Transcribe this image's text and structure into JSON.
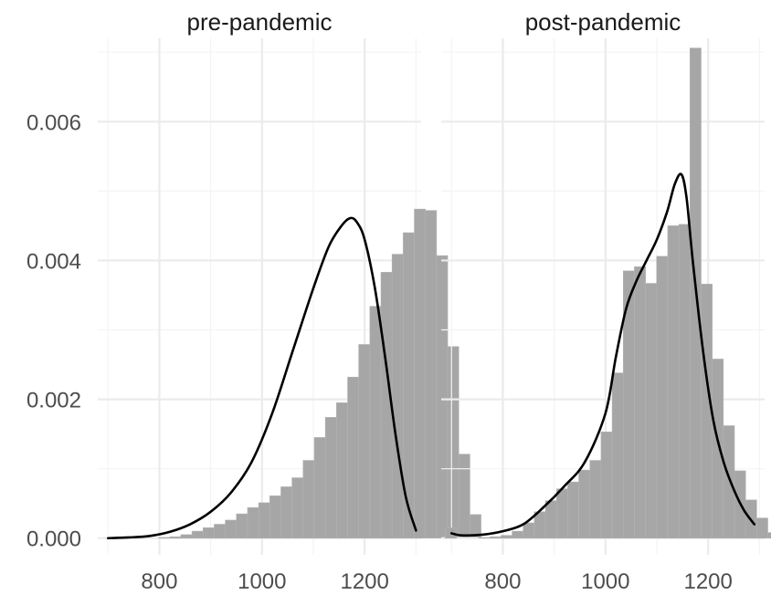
{
  "chart_data": {
    "type": "histogram",
    "xlim": [
      680,
      1310
    ],
    "ylim": [
      -0.00024,
      0.0072
    ],
    "x_ticks": [
      800,
      1000,
      1200
    ],
    "y_ticks": [
      0.0,
      0.002,
      0.004,
      0.006
    ],
    "x_tick_labels": [
      "800",
      "1000",
      "1200"
    ],
    "y_tick_labels": [
      "0.000",
      "0.002",
      "0.004",
      "0.006"
    ],
    "bin_width": 21.66,
    "grid": true,
    "facets": [
      {
        "strip": "pre-pandemic",
        "bins_start": 711.9,
        "histogram": [
          0,
          0,
          0,
          0,
          1e-05,
          2e-05,
          5e-05,
          0.0001,
          0.00015,
          0.0002,
          0.00026,
          0.00035,
          0.00044,
          0.00051,
          0.00061,
          0.00074,
          0.00087,
          0.00112,
          0.00145,
          0.00174,
          0.00195,
          0.00232,
          0.00279,
          0.00334,
          0.00383,
          0.00409,
          0.0044,
          0.00474,
          0.00472,
          0.00407,
          0.00276,
          0.00121,
          0.00034
        ],
        "density": [
          [
            700,
            0
          ],
          [
            740,
            1e-05
          ],
          [
            780,
            3e-05
          ],
          [
            820,
            9e-05
          ],
          [
            860,
            0.0002
          ],
          [
            900,
            0.00038
          ],
          [
            940,
            0.00066
          ],
          [
            980,
            0.0011
          ],
          [
            1020,
            0.0018
          ],
          [
            1060,
            0.0027
          ],
          [
            1100,
            0.0036
          ],
          [
            1130,
            0.0042
          ],
          [
            1155,
            0.0045
          ],
          [
            1172,
            0.00461
          ],
          [
            1185,
            0.00455
          ],
          [
            1200,
            0.0043
          ],
          [
            1220,
            0.0036
          ],
          [
            1240,
            0.0026
          ],
          [
            1260,
            0.0015
          ],
          [
            1280,
            0.0006
          ],
          [
            1300,
            0.00011
          ]
        ]
      },
      {
        "strip": "post-pandemic",
        "bins_start": 688.1,
        "histogram": [
          0.00015,
          0,
          0,
          1e-05,
          2e-05,
          4e-05,
          0.0001,
          0.00022,
          0.00038,
          0.00054,
          0.00071,
          0.00081,
          0.00098,
          0.00112,
          0.00153,
          0.00238,
          0.00385,
          0.00391,
          0.00367,
          0.00406,
          0.0045,
          0.00452,
          0.00706,
          0.00366,
          0.00258,
          0.00162,
          0.00097,
          0.00055,
          0.00029,
          8e-05
        ],
        "density": [
          [
            700,
            7e-05
          ],
          [
            720,
            4e-05
          ],
          [
            760,
            5e-05
          ],
          [
            800,
            0.0001
          ],
          [
            840,
            0.0002
          ],
          [
            880,
            0.00045
          ],
          [
            920,
            0.00075
          ],
          [
            960,
            0.0011
          ],
          [
            1000,
            0.0018
          ],
          [
            1020,
            0.0026
          ],
          [
            1040,
            0.0033
          ],
          [
            1060,
            0.0037
          ],
          [
            1080,
            0.004
          ],
          [
            1100,
            0.0043
          ],
          [
            1120,
            0.0047
          ],
          [
            1135,
            0.0051
          ],
          [
            1148,
            0.00524
          ],
          [
            1158,
            0.0049
          ],
          [
            1170,
            0.004
          ],
          [
            1190,
            0.0027
          ],
          [
            1210,
            0.0017
          ],
          [
            1230,
            0.0011
          ],
          [
            1250,
            0.0007
          ],
          [
            1270,
            0.0004
          ],
          [
            1290,
            0.0002
          ]
        ]
      }
    ]
  }
}
